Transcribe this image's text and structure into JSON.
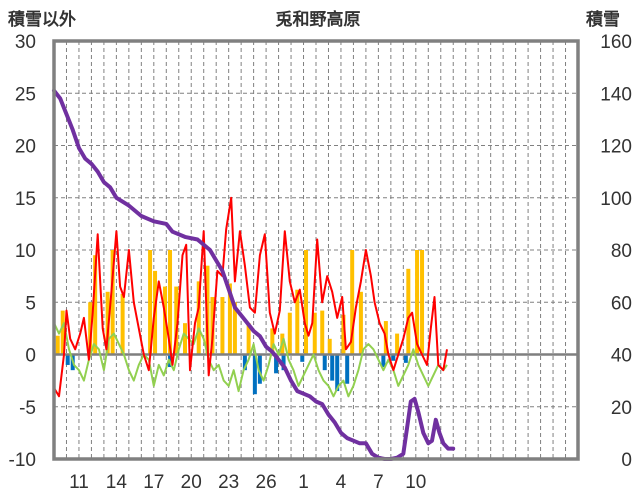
{
  "chart_data": {
    "type": "line",
    "title": "兎和野高原",
    "ylabel": "積雪以外",
    "y2label": "積雪",
    "ylim": [
      -10,
      30
    ],
    "y2lim": [
      0,
      160
    ],
    "yticks": [
      -10,
      -5,
      0,
      5,
      10,
      15,
      20,
      25,
      30
    ],
    "y2ticks": [
      0,
      20,
      40,
      60,
      80,
      100,
      120,
      140,
      160
    ],
    "xlim": [
      0,
      42
    ],
    "xticks": [
      {
        "x": 2,
        "label": "11"
      },
      {
        "x": 5,
        "label": "14"
      },
      {
        "x": 8,
        "label": "17"
      },
      {
        "x": 11,
        "label": "20"
      },
      {
        "x": 14,
        "label": "23"
      },
      {
        "x": 17,
        "label": "26"
      },
      {
        "x": 20,
        "label": "1"
      },
      {
        "x": 23,
        "label": "4"
      },
      {
        "x": 26,
        "label": "7"
      },
      {
        "x": 29,
        "label": "10"
      }
    ],
    "grid": true,
    "colors": {
      "red": "#ff0000",
      "green": "#92d050",
      "purple": "#7030a0",
      "gold": "#ffc000",
      "blue": "#0070c0",
      "zero": "#7f7f7f",
      "frame": "#808080"
    },
    "series": [
      {
        "color": "#ffc000",
        "type": "bar",
        "values": [
          [
            0.3,
            1.8
          ],
          [
            0.7,
            4.2
          ],
          [
            2.9,
            5
          ],
          [
            3.3,
            9.5
          ],
          [
            4.3,
            6
          ],
          [
            4.7,
            10
          ],
          [
            5.5,
            5.8
          ],
          [
            7.7,
            10
          ],
          [
            8.1,
            8
          ],
          [
            8.9,
            6.5
          ],
          [
            9.3,
            10
          ],
          [
            9.8,
            6.5
          ],
          [
            10.5,
            3
          ],
          [
            11.6,
            7
          ],
          [
            12.3,
            8.5
          ],
          [
            12.7,
            5.5
          ],
          [
            13.5,
            5.5
          ],
          [
            14.1,
            6.8
          ],
          [
            14.5,
            5
          ],
          [
            15.6,
            3
          ],
          [
            17.5,
            2.5
          ],
          [
            18.3,
            2
          ],
          [
            18.9,
            4
          ],
          [
            19.5,
            6.2
          ],
          [
            20.2,
            10
          ],
          [
            20.9,
            4
          ],
          [
            21.5,
            4.2
          ],
          [
            22.1,
            1.5
          ],
          [
            23.2,
            3.8
          ],
          [
            23.9,
            10
          ],
          [
            24.6,
            6
          ],
          [
            26.6,
            3.2
          ],
          [
            27.5,
            2
          ],
          [
            28.4,
            8.2
          ],
          [
            29.1,
            10
          ],
          [
            29.5,
            10
          ]
        ]
      },
      {
        "color": "#0070c0",
        "type": "bar",
        "values": [
          [
            1.1,
            -1
          ],
          [
            1.5,
            -1.5
          ],
          [
            9.3,
            -1.2
          ],
          [
            15.3,
            -1.5
          ],
          [
            16.1,
            -3.8
          ],
          [
            16.5,
            -2.8
          ],
          [
            17.8,
            -1.8
          ],
          [
            18.4,
            -1.5
          ],
          [
            19.9,
            -0.7
          ],
          [
            21.7,
            -1.5
          ],
          [
            22.3,
            -2.5
          ],
          [
            22.7,
            -3.5
          ],
          [
            23.5,
            -2.8
          ],
          [
            26.4,
            -1.2
          ],
          [
            27.2,
            -0.6
          ],
          [
            28.2,
            -0.8
          ]
        ]
      },
      {
        "color": "#ff0000",
        "type": "line",
        "values": [
          [
            0,
            -3.2
          ],
          [
            0.4,
            -4
          ],
          [
            0.8,
            0
          ],
          [
            1,
            4.2
          ],
          [
            1.3,
            1.5
          ],
          [
            1.7,
            0.5
          ],
          [
            2.1,
            2
          ],
          [
            2.4,
            3.5
          ],
          [
            2.8,
            -0.5
          ],
          [
            3.1,
            4
          ],
          [
            3.5,
            11.5
          ],
          [
            3.9,
            2.5
          ],
          [
            4.2,
            0.5
          ],
          [
            4.6,
            6
          ],
          [
            5,
            11.8
          ],
          [
            5.3,
            6.5
          ],
          [
            5.6,
            5.5
          ],
          [
            6,
            10
          ],
          [
            6.4,
            5
          ],
          [
            6.8,
            2.5
          ],
          [
            7.2,
            0
          ],
          [
            7.6,
            -1.5
          ],
          [
            8,
            3.5
          ],
          [
            8.4,
            7
          ],
          [
            8.8,
            4.5
          ],
          [
            9.2,
            1.5
          ],
          [
            9.5,
            -1
          ],
          [
            9.9,
            3
          ],
          [
            10.3,
            9.5
          ],
          [
            10.6,
            10.5
          ],
          [
            10.9,
            -1.5
          ],
          [
            11.3,
            3
          ],
          [
            11.6,
            4.5
          ],
          [
            12,
            11.8
          ],
          [
            12.4,
            -2
          ],
          [
            12.7,
            1.5
          ],
          [
            13.1,
            8
          ],
          [
            13.5,
            7.5
          ],
          [
            13.8,
            12
          ],
          [
            14.2,
            15
          ],
          [
            14.5,
            7
          ],
          [
            14.9,
            11.8
          ],
          [
            15.3,
            8.5
          ],
          [
            15.7,
            4.5
          ],
          [
            16.1,
            4
          ],
          [
            16.5,
            9.5
          ],
          [
            16.9,
            11.5
          ],
          [
            17.3,
            4
          ],
          [
            17.7,
            2
          ],
          [
            18.1,
            4.2
          ],
          [
            18.5,
            11.8
          ],
          [
            18.9,
            7
          ],
          [
            19.3,
            5
          ],
          [
            19.7,
            6.2
          ],
          [
            20.1,
            3
          ],
          [
            20.4,
            1.8
          ],
          [
            20.7,
            3
          ],
          [
            21.1,
            11
          ],
          [
            21.5,
            5
          ],
          [
            21.9,
            7.5
          ],
          [
            22.3,
            6
          ],
          [
            22.7,
            3.5
          ],
          [
            23.1,
            5.5
          ],
          [
            23.4,
            0.5
          ],
          [
            23.8,
            1.2
          ],
          [
            24.2,
            4.5
          ],
          [
            24.6,
            7
          ],
          [
            25,
            10
          ],
          [
            25.4,
            7.5
          ],
          [
            25.7,
            5
          ],
          [
            26.1,
            3
          ],
          [
            26.5,
            2
          ],
          [
            26.8,
            0
          ],
          [
            27.2,
            -1.5
          ],
          [
            27.6,
            0
          ],
          [
            28,
            1.5
          ],
          [
            28.4,
            3.5
          ],
          [
            28.7,
            4
          ],
          [
            29.1,
            1
          ],
          [
            29.5,
            0
          ],
          [
            29.9,
            -1
          ],
          [
            30.2,
            2.5
          ],
          [
            30.5,
            5.5
          ],
          [
            30.8,
            -1
          ],
          [
            31.2,
            -1.5
          ],
          [
            31.5,
            0.5
          ]
        ]
      },
      {
        "color": "#92d050",
        "type": "line",
        "values": [
          [
            0,
            3
          ],
          [
            0.4,
            2
          ],
          [
            0.8,
            3
          ],
          [
            1.2,
            0.5
          ],
          [
            1.6,
            -1
          ],
          [
            2,
            -1.5
          ],
          [
            2.4,
            -2.5
          ],
          [
            2.8,
            -0.5
          ],
          [
            3.2,
            1
          ],
          [
            3.6,
            0.5
          ],
          [
            4,
            -1.5
          ],
          [
            4.4,
            1.5
          ],
          [
            4.8,
            2
          ],
          [
            5.2,
            1
          ],
          [
            5.6,
            0
          ],
          [
            6,
            -1.5
          ],
          [
            6.4,
            -2.5
          ],
          [
            6.8,
            -1
          ],
          [
            7.2,
            0
          ],
          [
            7.6,
            -0.5
          ],
          [
            8,
            -3
          ],
          [
            8.4,
            -1
          ],
          [
            8.8,
            -2
          ],
          [
            9.2,
            -0.5
          ],
          [
            9.6,
            -1.5
          ],
          [
            10,
            0.5
          ],
          [
            10.4,
            2
          ],
          [
            10.8,
            1.5
          ],
          [
            11.2,
            1
          ],
          [
            11.6,
            2.5
          ],
          [
            12,
            1.5
          ],
          [
            12.4,
            -0.5
          ],
          [
            12.8,
            -1.5
          ],
          [
            13.2,
            -1
          ],
          [
            13.6,
            -2.5
          ],
          [
            14,
            -3
          ],
          [
            14.4,
            -1.5
          ],
          [
            14.8,
            -3.5
          ],
          [
            15.2,
            -1.5
          ],
          [
            15.6,
            -0.5
          ],
          [
            16,
            1
          ],
          [
            16.4,
            -1.5
          ],
          [
            16.8,
            -2.5
          ],
          [
            17.2,
            -1
          ],
          [
            17.6,
            1
          ],
          [
            18,
            0
          ],
          [
            18.4,
            1.5
          ],
          [
            18.8,
            -0.5
          ],
          [
            19.2,
            -1.5
          ],
          [
            19.6,
            -3
          ],
          [
            20,
            -2
          ],
          [
            20.4,
            -1
          ],
          [
            20.8,
            0
          ],
          [
            21.2,
            -1.5
          ],
          [
            21.6,
            -2.5
          ],
          [
            22,
            -3
          ],
          [
            22.4,
            -4
          ],
          [
            22.8,
            -3
          ],
          [
            23.2,
            -2.5
          ],
          [
            23.6,
            -4
          ],
          [
            24,
            -3
          ],
          [
            24.4,
            -1.5
          ],
          [
            24.8,
            0.5
          ],
          [
            25.2,
            1
          ],
          [
            25.6,
            0.5
          ],
          [
            26,
            -0.5
          ],
          [
            26.4,
            -1.5
          ],
          [
            26.8,
            -0.5
          ],
          [
            27.2,
            -1.5
          ],
          [
            27.6,
            -3
          ],
          [
            28,
            -2
          ],
          [
            28.4,
            -1
          ],
          [
            28.8,
            0.5
          ],
          [
            29.2,
            -1
          ],
          [
            29.6,
            -2
          ],
          [
            30,
            -3
          ],
          [
            30.4,
            -2
          ],
          [
            30.8,
            -1
          ],
          [
            31.2,
            -1.5
          ],
          [
            31.5,
            -1
          ]
        ]
      },
      {
        "color": "#7030a0",
        "type": "line",
        "axis": "y2",
        "values": [
          [
            0,
            141
          ],
          [
            0.5,
            138
          ],
          [
            1,
            132
          ],
          [
            1.5,
            126
          ],
          [
            2,
            119
          ],
          [
            2.5,
            115
          ],
          [
            3,
            113
          ],
          [
            3.5,
            110
          ],
          [
            4,
            106
          ],
          [
            4.5,
            104
          ],
          [
            5,
            100
          ],
          [
            6,
            97
          ],
          [
            7,
            93
          ],
          [
            8,
            91
          ],
          [
            9,
            90
          ],
          [
            9.5,
            87
          ],
          [
            10.5,
            85
          ],
          [
            11.5,
            84
          ],
          [
            12.5,
            80
          ],
          [
            13,
            76
          ],
          [
            13.5,
            72
          ],
          [
            14,
            65
          ],
          [
            14.5,
            58
          ],
          [
            15,
            55
          ],
          [
            15.5,
            52
          ],
          [
            16,
            49
          ],
          [
            16.5,
            47
          ],
          [
            17,
            43
          ],
          [
            17.5,
            41
          ],
          [
            18,
            38
          ],
          [
            18.5,
            35
          ],
          [
            19,
            30
          ],
          [
            19.5,
            26
          ],
          [
            20,
            25
          ],
          [
            20.5,
            24
          ],
          [
            21,
            22
          ],
          [
            21.5,
            21
          ],
          [
            22,
            17
          ],
          [
            22.5,
            14
          ],
          [
            23,
            10
          ],
          [
            23.5,
            8
          ],
          [
            24,
            7
          ],
          [
            24.5,
            6
          ],
          [
            25,
            6
          ],
          [
            25.5,
            2
          ],
          [
            26,
            0.5
          ],
          [
            26.5,
            0
          ],
          [
            27,
            0
          ],
          [
            27.5,
            0.5
          ],
          [
            28,
            2
          ],
          [
            28.3,
            12
          ],
          [
            28.6,
            22
          ],
          [
            28.9,
            23
          ],
          [
            29.2,
            18
          ],
          [
            29.6,
            10
          ],
          [
            30,
            6
          ],
          [
            30.3,
            7
          ],
          [
            30.6,
            15
          ],
          [
            30.9,
            10
          ],
          [
            31.2,
            6
          ],
          [
            31.6,
            4
          ],
          [
            32,
            4
          ]
        ]
      }
    ]
  }
}
